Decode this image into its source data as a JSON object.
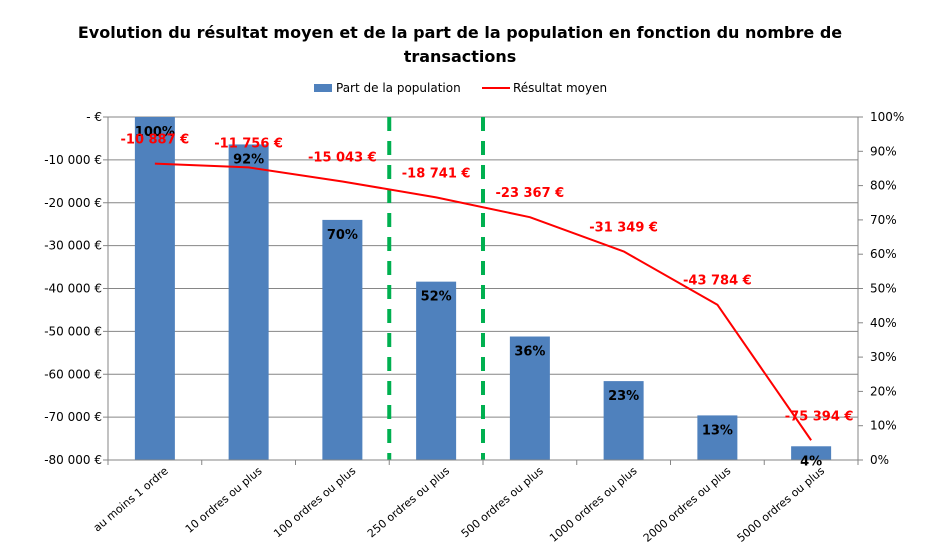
{
  "chart_data": {
    "type": "bar",
    "title": "Evolution du résultat moyen et de la part de la population en fonction du nombre de transactions",
    "title_lines": [
      "Evolution du résultat moyen et de la part de la population en fonction du nombre de",
      "transactions"
    ],
    "categories": [
      "au moins 1 ordre",
      "10 ordres ou plus",
      "100 ordres ou plus",
      "250 ordres ou plus",
      "500 ordres ou plus",
      "1000 ordres ou plus",
      "2000 ordres ou plus",
      "5000 ordres ou plus"
    ],
    "series": [
      {
        "name": "Part de la population",
        "type": "bar",
        "axis": "y2",
        "color": "#4f81bd",
        "values": [
          100,
          92,
          70,
          52,
          36,
          23,
          13,
          4
        ],
        "labels": [
          "100%",
          "92%",
          "70%",
          "52%",
          "36%",
          "23%",
          "13%",
          "4%"
        ]
      },
      {
        "name": "Résultat moyen",
        "type": "line",
        "axis": "y",
        "color": "#ff0000",
        "values": [
          -10887,
          -11756,
          -15043,
          -18741,
          -23367,
          -31349,
          -43784,
          -75394
        ],
        "labels": [
          "-10 887 €",
          "-11 756 €",
          "-15 043 €",
          "-18 741 €",
          "-23 367 €",
          "-31 349 €",
          "-43 784 €",
          "-75 394 €"
        ]
      }
    ],
    "y_axis": {
      "ylim": [
        -80000,
        0
      ],
      "ticks": [
        0,
        -10000,
        -20000,
        -30000,
        -40000,
        -50000,
        -60000,
        -70000,
        -80000
      ],
      "tick_labels": [
        "-   €",
        "-10 000 €",
        "-20 000 €",
        "-30 000 €",
        "-40 000 €",
        "-50 000 €",
        "-60 000 €",
        "-70 000 €",
        "-80 000 €"
      ]
    },
    "y2_axis": {
      "ylim": [
        0,
        100
      ],
      "ticks": [
        100,
        90,
        80,
        70,
        60,
        50,
        40,
        30,
        20,
        10,
        0
      ],
      "tick_labels": [
        "100%",
        "90%",
        "80%",
        "70%",
        "60%",
        "50%",
        "40%",
        "30%",
        "20%",
        "10%",
        "0%"
      ]
    },
    "vertical_markers": {
      "color": "#00b050",
      "style": "dashed",
      "between_categories": [
        [
          2,
          3
        ],
        [
          3,
          4
        ]
      ]
    },
    "grid": true,
    "legend": "top"
  }
}
